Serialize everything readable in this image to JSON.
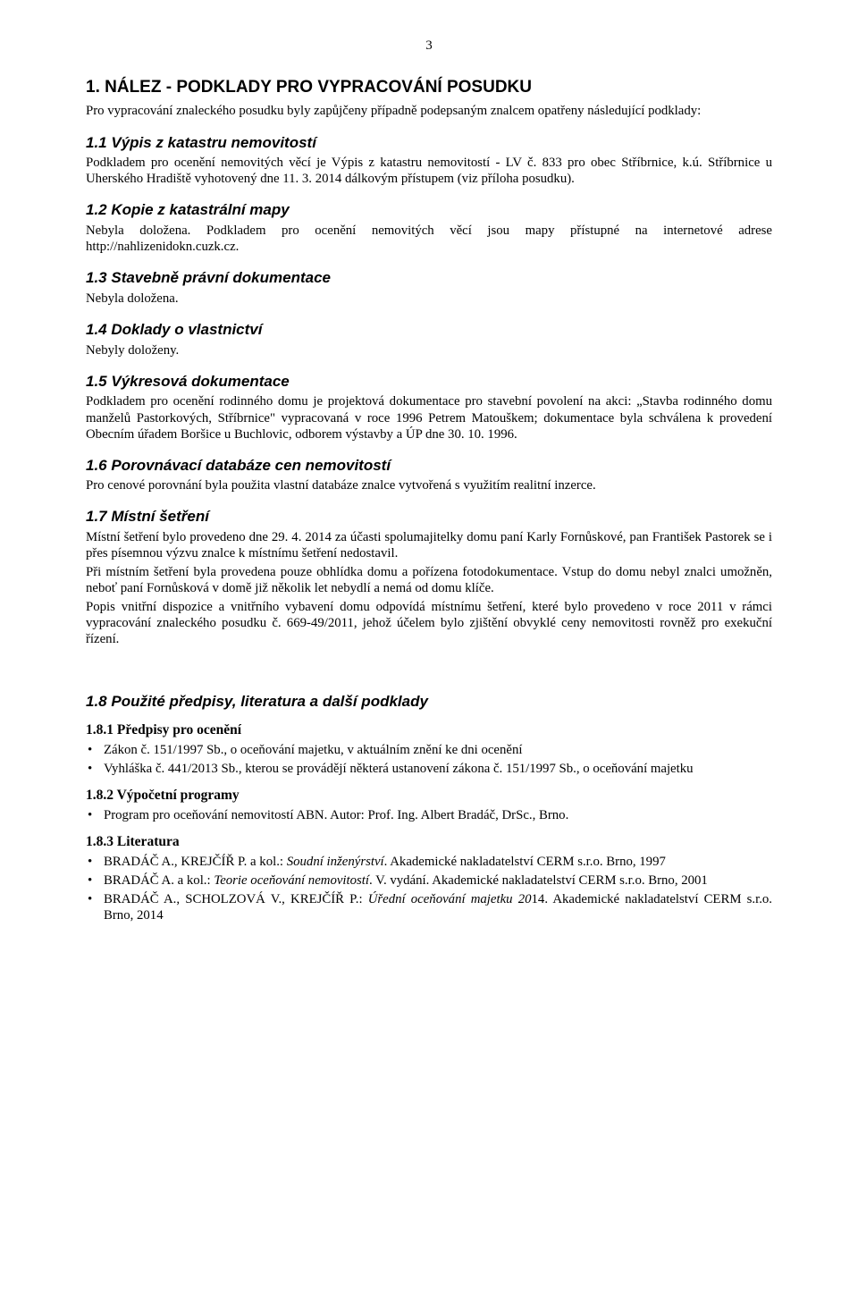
{
  "page_number": "3",
  "h1_title": "1.   NÁLEZ - PODKLADY PRO VYPRACOVÁNÍ POSUDKU",
  "intro": "Pro vypracování znaleckého posudku byly zapůjčeny případně podepsaným znalcem opatřeny následující podklady:",
  "s1_1": {
    "title": "1.1   Výpis z katastru nemovitostí",
    "p": "Podkladem pro ocenění nemovitých věcí je Výpis z katastru nemovitostí - LV č. 833 pro obec Stříbrnice, k.ú. Stříbrnice u Uherského Hradiště vyhotovený dne 11. 3. 2014 dálkovým přístupem (viz příloha posudku)."
  },
  "s1_2": {
    "title": "1.2   Kopie z katastrální mapy",
    "p": "Nebyla doložena. Podkladem pro ocenění nemovitých věcí jsou mapy přístupné na internetové adrese http://nahlizenidokn.cuzk.cz."
  },
  "s1_3": {
    "title": "1.3   Stavebně právní dokumentace",
    "p": "Nebyla doložena."
  },
  "s1_4": {
    "title": "1.4   Doklady o vlastnictví",
    "p": "Nebyly doloženy."
  },
  "s1_5": {
    "title": "1.5   Výkresová dokumentace",
    "p": "Podkladem pro ocenění rodinného domu je projektová dokumentace pro stavební povolení na akci: „Stavba rodinného domu manželů Pastorkových, Stříbrnice\" vypracovaná v roce 1996 Petrem Matouškem; dokumentace byla schválena k provedení Obecním úřadem Boršice u Buchlovic, odborem výstavby a ÚP dne 30. 10. 1996."
  },
  "s1_6": {
    "title": "1.6   Porovnávací databáze cen nemovitostí",
    "p": "Pro cenové porovnání byla použita vlastní databáze znalce vytvořená s využitím realitní inzerce."
  },
  "s1_7": {
    "title": "1.7   Místní šetření",
    "p1": "Místní šetření bylo provedeno dne 29. 4. 2014 za účasti spolumajitelky domu paní Karly Fornůskové, pan František Pastorek se i přes písemnou výzvu znalce k místnímu šetření nedostavil.",
    "p2": "Při místním šetření byla provedena pouze obhlídka domu a pořízena fotodokumentace. Vstup do domu nebyl znalci umožněn, neboť paní Fornůsková v domě již několik let nebydlí a nemá od domu klíče.",
    "p3": "Popis vnitřní dispozice a vnitřního vybavení domu odpovídá místnímu šetření, které bylo provedeno v roce 2011 v rámci vypracování znaleckého posudku č. 669-49/2011, jehož účelem bylo zjištění obvyklé ceny nemovitosti rovněž pro exekuční řízení."
  },
  "s1_8": {
    "title": "1.8   Použité předpisy,  literatura a další podklady",
    "s1": {
      "title": "1.8.1    Předpisy pro ocenění",
      "li1": "Zákon č. 151/1997 Sb., o oceňování majetku, v aktuálním znění ke dni ocenění",
      "li2": "Vyhláška č. 441/2013 Sb., kterou se provádějí některá ustanovení zákona č. 151/1997 Sb., o oceňování majetku"
    },
    "s2": {
      "title": "1.8.2    Výpočetní programy",
      "li1": "Program pro oceňování nemovitostí ABN. Autor: Prof. Ing. Albert Bradáč, DrSc., Brno."
    },
    "s3": {
      "title": "1.8.3    Literatura",
      "li1_a": "BRADÁČ A., KREJČÍŘ P. a kol.: ",
      "li1_i": "Soudní inženýrství",
      "li1_b": ". Akademické nakladatelství CERM s.r.o. Brno, 1997",
      "li2_a": "BRADÁČ A. a kol.: ",
      "li2_i": "Teorie oceňování nemovitostí",
      "li2_b": ". V. vydání. Akademické nakladatelství CERM s.r.o. Brno, 2001",
      "li3_a": "BRADÁČ A., SCHOLZOVÁ V., KREJČÍŘ P.: ",
      "li3_i": "Úřední oceňování majetku 20",
      "li3_b": "14. Akademické nakladatelství CERM s.r.o. Brno, 2014"
    }
  }
}
